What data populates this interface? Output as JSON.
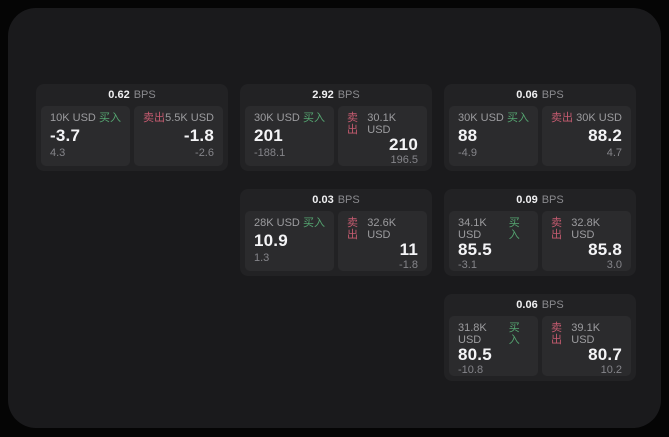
{
  "labels": {
    "bps_unit": "BPS",
    "buy": "买入",
    "sell": "卖出"
  },
  "colors": {
    "buy_green": "#55a571",
    "sell_red": "#c55b70",
    "page_bg": "#1a1a1c",
    "card_bg": "#222224",
    "panel_bg": "#2b2b2d",
    "outer_bg": "#050505"
  },
  "cards": [
    {
      "bps": "0.62",
      "buy": {
        "amount": "10K USD",
        "price": "-3.7",
        "change": "4.3"
      },
      "sell": {
        "amount": "5.5K USD",
        "price": "-1.8",
        "change": "-2.6"
      }
    },
    {
      "bps": "2.92",
      "buy": {
        "amount": "30K USD",
        "price": "201",
        "change": "-188.1"
      },
      "sell": {
        "amount": "30.1K USD",
        "price": "210",
        "change": "196.5"
      }
    },
    {
      "bps": "0.06",
      "buy": {
        "amount": "30K USD",
        "price": "88",
        "change": "-4.9"
      },
      "sell": {
        "amount": "30K USD",
        "price": "88.2",
        "change": "4.7"
      }
    },
    {
      "bps": "0.03",
      "buy": {
        "amount": "28K USD",
        "price": "10.9",
        "change": "1.3"
      },
      "sell": {
        "amount": "32.6K USD",
        "price": "11",
        "change": "-1.8"
      }
    },
    {
      "bps": "0.09",
      "buy": {
        "amount": "34.1K USD",
        "price": "85.5",
        "change": "-3.1"
      },
      "sell": {
        "amount": "32.8K USD",
        "price": "85.8",
        "change": "3.0"
      }
    },
    {
      "bps": "0.06",
      "buy": {
        "amount": "31.8K USD",
        "price": "80.5",
        "change": "-10.8"
      },
      "sell": {
        "amount": "39.1K USD",
        "price": "80.7",
        "change": "10.2"
      }
    }
  ]
}
